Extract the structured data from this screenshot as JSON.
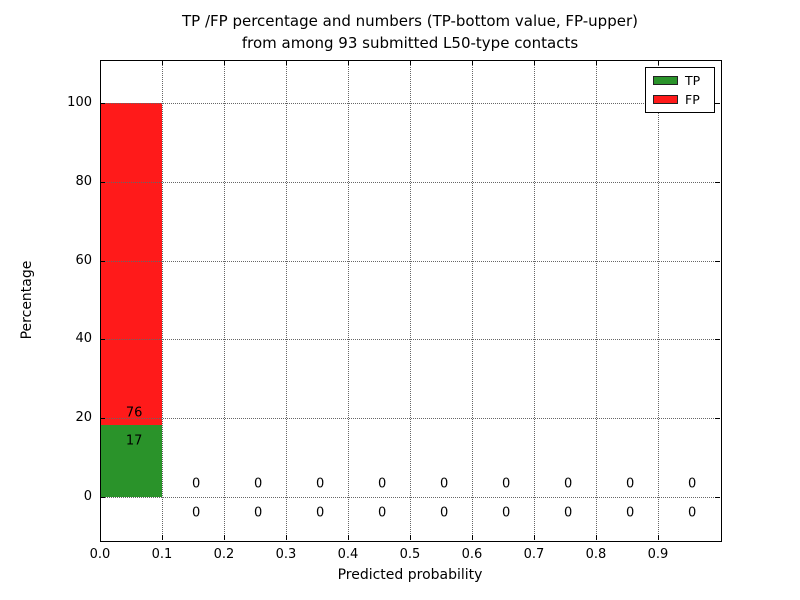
{
  "chart_data": {
    "type": "bar",
    "stacked": true,
    "title_line1": "TP /FP percentage and numbers (TP-bottom value, FP-upper)",
    "title_line2": "from among 93 submitted L50-type contacts",
    "xlabel": "Predicted probability",
    "ylabel": "Percentage",
    "total_submitted_contacts": 93,
    "xlim": [
      0.0,
      1.0
    ],
    "ylim": [
      -11,
      111
    ],
    "bins": [
      0.0,
      0.1,
      0.2,
      0.3,
      0.4,
      0.5,
      0.6,
      0.7,
      0.8,
      0.9
    ],
    "bar_width": 0.1,
    "series": [
      {
        "name": "TP",
        "color": "#2a932a",
        "counts": [
          17,
          0,
          0,
          0,
          0,
          0,
          0,
          0,
          0,
          0
        ],
        "percent": [
          18.28,
          0,
          0,
          0,
          0,
          0,
          0,
          0,
          0,
          0
        ]
      },
      {
        "name": "FP",
        "color": "#ff1a1a",
        "counts": [
          76,
          0,
          0,
          0,
          0,
          0,
          0,
          0,
          0,
          0
        ],
        "percent": [
          81.72,
          0,
          0,
          0,
          0,
          0,
          0,
          0,
          0,
          0
        ]
      }
    ],
    "annotations": [
      {
        "x": 0.055,
        "y": 21.3,
        "text": "76",
        "series": "FP"
      },
      {
        "x": 0.055,
        "y": 14.2,
        "text": "17",
        "series": "TP"
      },
      {
        "x": 0.155,
        "y": 3.2,
        "text": "0",
        "series": "FP"
      },
      {
        "x": 0.155,
        "y": -4.2,
        "text": "0",
        "series": "TP"
      },
      {
        "x": 0.255,
        "y": 3.2,
        "text": "0",
        "series": "FP"
      },
      {
        "x": 0.255,
        "y": -4.2,
        "text": "0",
        "series": "TP"
      },
      {
        "x": 0.355,
        "y": 3.2,
        "text": "0",
        "series": "FP"
      },
      {
        "x": 0.355,
        "y": -4.2,
        "text": "0",
        "series": "TP"
      },
      {
        "x": 0.455,
        "y": 3.2,
        "text": "0",
        "series": "FP"
      },
      {
        "x": 0.455,
        "y": -4.2,
        "text": "0",
        "series": "TP"
      },
      {
        "x": 0.555,
        "y": 3.2,
        "text": "0",
        "series": "FP"
      },
      {
        "x": 0.555,
        "y": -4.2,
        "text": "0",
        "series": "TP"
      },
      {
        "x": 0.655,
        "y": 3.2,
        "text": "0",
        "series": "FP"
      },
      {
        "x": 0.655,
        "y": -4.2,
        "text": "0",
        "series": "TP"
      },
      {
        "x": 0.755,
        "y": 3.2,
        "text": "0",
        "series": "FP"
      },
      {
        "x": 0.755,
        "y": -4.2,
        "text": "0",
        "series": "TP"
      },
      {
        "x": 0.855,
        "y": 3.2,
        "text": "0",
        "series": "FP"
      },
      {
        "x": 0.855,
        "y": -4.2,
        "text": "0",
        "series": "TP"
      },
      {
        "x": 0.955,
        "y": 3.2,
        "text": "0",
        "series": "FP"
      },
      {
        "x": 0.955,
        "y": -4.2,
        "text": "0",
        "series": "TP"
      }
    ],
    "xticks": {
      "labels": [
        "0.0",
        "0.1",
        "0.2",
        "0.3",
        "0.4",
        "0.5",
        "0.6",
        "0.7",
        "0.8",
        "0.9"
      ],
      "values": [
        0.0,
        0.1,
        0.2,
        0.3,
        0.4,
        0.5,
        0.6,
        0.7,
        0.8,
        0.9
      ]
    },
    "yticks": {
      "labels": [
        "0",
        "20",
        "40",
        "60",
        "80",
        "100"
      ],
      "values": [
        0,
        20,
        40,
        60,
        80,
        100
      ]
    },
    "grid": {
      "enabled": true,
      "style": "dotted",
      "color": "#666666"
    },
    "legend": {
      "position": "top-right",
      "items": [
        {
          "label": "TP",
          "color": "#2a932a"
        },
        {
          "label": "FP",
          "color": "#ff1a1a"
        }
      ]
    }
  }
}
